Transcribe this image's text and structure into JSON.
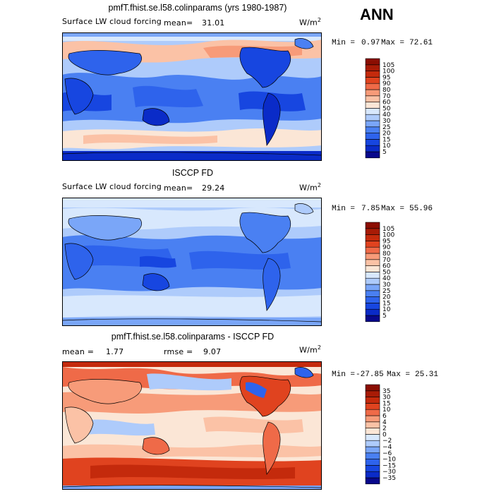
{
  "season": "ANN",
  "unit": "W/m",
  "unit_exp": "2",
  "panels": [
    {
      "title": "pmfT.fhist.se.l58.colinparams (yrs 1980-1987)",
      "variable": "Surface LW cloud forcing",
      "mean_label": "mean=",
      "mean_value": "31.01",
      "min_label": "Min =",
      "min_value": "0.97",
      "max_label": "Max =",
      "max_value": "72.61"
    },
    {
      "title": "ISCCP FD",
      "variable": "Surface LW cloud forcing",
      "mean_label": "mean=",
      "mean_value": "29.24",
      "min_label": "Min =",
      "min_value": "7.85",
      "max_label": "Max =",
      "max_value": "55.96"
    },
    {
      "title": "pmfT.fhist.se.l58.colinparams - ISCCP FD",
      "mean_label": "mean =",
      "mean_value": "1.77",
      "rmse_label": "rmse =",
      "rmse_value": "9.07",
      "min_label": "Min =",
      "min_value": "-27.85",
      "max_label": "Max =",
      "max_value": "25.31"
    }
  ],
  "chart_data": [
    {
      "type": "heatmap",
      "title": "pmfT.fhist.se.l58.colinparams (yrs 1980-1987)",
      "variable": "Surface LW cloud forcing",
      "units": "W/m^2",
      "mean": 31.01,
      "min": 0.97,
      "max": 72.61,
      "colorbar_levels": [
        5,
        10,
        15,
        20,
        25,
        30,
        40,
        50,
        60,
        70,
        80,
        90,
        95,
        100,
        105
      ],
      "colorbar_colors": [
        "#08088c",
        "#0a2bc8",
        "#1746e0",
        "#2e63ec",
        "#4a80f2",
        "#7aa6f8",
        "#aecbfb",
        "#d8e8fd",
        "#fbe6d6",
        "#fbc2a6",
        "#f79b79",
        "#ef6a48",
        "#e0431f",
        "#c42a0c",
        "#a81b06",
        "#8b0e02"
      ]
    },
    {
      "type": "heatmap",
      "title": "ISCCP FD",
      "variable": "Surface LW cloud forcing",
      "units": "W/m^2",
      "mean": 29.24,
      "min": 7.85,
      "max": 55.96,
      "colorbar_levels": [
        5,
        10,
        15,
        20,
        25,
        30,
        40,
        50,
        60,
        70,
        80,
        90,
        95,
        100,
        105
      ],
      "colorbar_colors": [
        "#08088c",
        "#0a2bc8",
        "#1746e0",
        "#2e63ec",
        "#4a80f2",
        "#7aa6f8",
        "#aecbfb",
        "#d8e8fd",
        "#fbe6d6",
        "#fbc2a6",
        "#f79b79",
        "#ef6a48",
        "#e0431f",
        "#c42a0c",
        "#a81b06",
        "#8b0e02"
      ]
    },
    {
      "type": "heatmap",
      "title": "pmfT.fhist.se.l58.colinparams - ISCCP FD",
      "units": "W/m^2",
      "mean": 1.77,
      "rmse": 9.07,
      "min": -27.85,
      "max": 25.31,
      "colorbar_levels": [
        -35,
        -30,
        -15,
        -10,
        -6,
        -4,
        -2,
        0,
        2,
        4,
        6,
        10,
        15,
        30,
        35
      ],
      "colorbar_colors": [
        "#08088c",
        "#0a2bc8",
        "#1746e0",
        "#2e63ec",
        "#4a80f2",
        "#7aa6f8",
        "#aecbfb",
        "#d8e8fd",
        "#fbe6d6",
        "#fbc2a6",
        "#f79b79",
        "#ef6a48",
        "#e0431f",
        "#c42a0c",
        "#a81b06",
        "#8b0e02"
      ]
    }
  ]
}
